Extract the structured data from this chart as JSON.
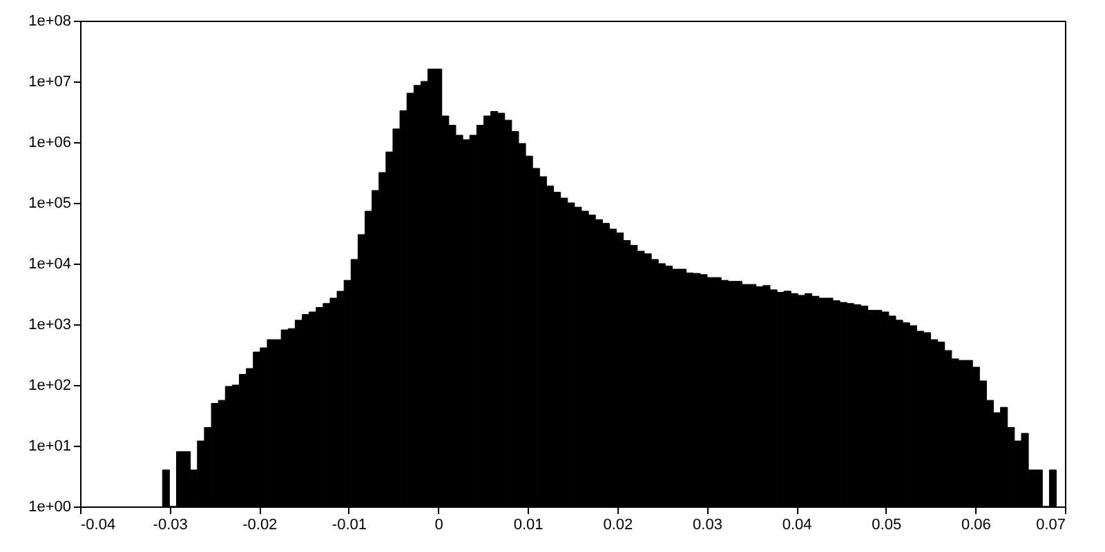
{
  "chart_data": {
    "type": "histogram",
    "color": "#000000",
    "log": "y",
    "grid": false,
    "bins": [
      -0.0308,
      -0.03002,
      -0.02924,
      -0.02846,
      -0.02768,
      -0.0269,
      -0.02612,
      -0.02534,
      -0.02456,
      -0.02378,
      -0.023,
      -0.02222,
      -0.02144,
      -0.02066,
      -0.01988,
      -0.0191,
      -0.01832,
      -0.01754,
      -0.01676,
      -0.01598,
      -0.0152,
      -0.01442,
      -0.01364,
      -0.01286,
      -0.01208,
      -0.0113,
      -0.01052,
      -0.00974,
      -0.00896,
      -0.00818,
      -0.0074,
      -0.00662,
      -0.00584,
      -0.00506,
      -0.00428,
      -0.0035,
      -0.00272,
      -0.00194,
      -0.00116,
      -0.00038,
      0.0004,
      0.00118,
      0.00196,
      0.00274,
      0.00352,
      0.0043,
      0.00508,
      0.00586,
      0.00664,
      0.00742,
      0.0082,
      0.00898,
      0.00976,
      0.01054,
      0.01132,
      0.0121,
      0.01288,
      0.01366,
      0.01444,
      0.01522,
      0.016,
      0.01678,
      0.01756,
      0.01834,
      0.01912,
      0.0199,
      0.02068,
      0.02146,
      0.02224,
      0.02302,
      0.0238,
      0.02458,
      0.02536,
      0.02614,
      0.02692,
      0.0277,
      0.02848,
      0.02926,
      0.03004,
      0.03082,
      0.0316,
      0.03238,
      0.03316,
      0.03394,
      0.03472,
      0.0355,
      0.03628,
      0.03706,
      0.03784,
      0.03862,
      0.0394,
      0.04018,
      0.04096,
      0.04174,
      0.04252,
      0.0433,
      0.04408,
      0.04486,
      0.04564,
      0.04642,
      0.0472,
      0.04798,
      0.04876,
      0.04954,
      0.05032,
      0.0511,
      0.05188,
      0.05266,
      0.05344,
      0.05422,
      0.055,
      0.05578,
      0.05656,
      0.05734,
      0.05812,
      0.0589,
      0.05968,
      0.06046,
      0.06124,
      0.06202,
      0.0628,
      0.06358,
      0.06436,
      0.06514,
      0.06592,
      0.0667,
      0.06748,
      0.06826,
      0.06904
    ],
    "values": [
      4,
      1,
      8,
      8,
      4,
      12,
      20,
      50,
      56,
      95,
      100,
      150,
      187,
      350,
      410,
      560,
      560,
      810,
      850,
      1170,
      1450,
      1600,
      1900,
      2200,
      2700,
      3500,
      5300,
      11700,
      30000,
      73000,
      160000,
      316000,
      690000,
      1650000,
      3300000,
      6400000,
      8600000,
      10000000,
      16000000,
      16000000,
      2700000,
      1900000,
      1300000,
      1100000,
      1300000,
      1900000,
      2700000,
      3200000,
      3000000,
      2300000,
      1500000,
      950000,
      590000,
      370000,
      270000,
      190000,
      150000,
      120000,
      100000,
      85000,
      73000,
      63000,
      53000,
      46000,
      37000,
      32000,
      24000,
      20000,
      16000,
      14500,
      11700,
      10000,
      9100,
      8100,
      8100,
      7000,
      6900,
      6600,
      5900,
      5900,
      5300,
      5100,
      5100,
      4540,
      4540,
      4170,
      4350,
      3700,
      3370,
      3520,
      3200,
      3000,
      3200,
      2900,
      2700,
      2700,
      2450,
      2300,
      2200,
      2100,
      2000,
      1700,
      1700,
      1600,
      1370,
      1170,
      1060,
      950,
      770,
      730,
      560,
      510,
      370,
      270,
      255,
      255,
      197,
      117,
      56,
      35,
      43,
      20,
      12,
      16,
      4,
      4,
      1,
      4
    ],
    "xlim": [
      -0.04,
      0.07
    ],
    "xticks": [
      -0.04,
      -0.03,
      -0.02,
      -0.01,
      0,
      0.01,
      0.02,
      0.03,
      0.04,
      0.05,
      0.06,
      0.07
    ],
    "ylim": [
      1,
      100000000
    ],
    "yticks": [
      {
        "value": 1,
        "label": "1e+00"
      },
      {
        "value": 10,
        "label": "1e+01"
      },
      {
        "value": 100,
        "label": "1e+02"
      },
      {
        "value": 1000,
        "label": "1e+03"
      },
      {
        "value": 10000,
        "label": "1e+04"
      },
      {
        "value": 100000,
        "label": "1e+05"
      },
      {
        "value": 1000000,
        "label": "1e+06"
      },
      {
        "value": 10000000,
        "label": "1e+07"
      },
      {
        "value": 100000000,
        "label": "1e+08"
      }
    ]
  }
}
